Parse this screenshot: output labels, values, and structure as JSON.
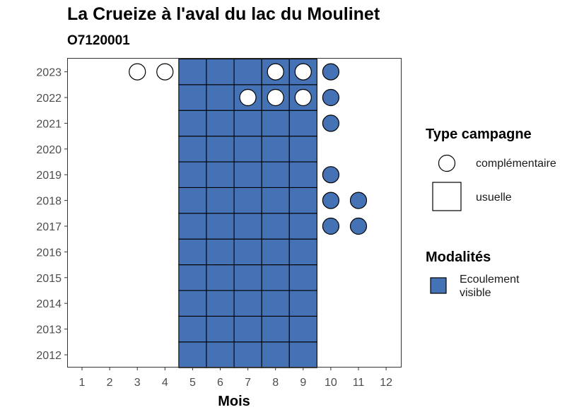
{
  "title": "La Crueize à l'aval du lac du Moulinet",
  "subtitle": "O7120001",
  "chart_data": {
    "type": "heatmap",
    "xlabel": "Mois",
    "ylabel": "",
    "x_ticks": [
      1,
      2,
      3,
      4,
      5,
      6,
      7,
      8,
      9,
      10,
      11,
      12
    ],
    "y_ticks": [
      2012,
      2013,
      2014,
      2015,
      2016,
      2017,
      2018,
      2019,
      2020,
      2021,
      2022,
      2023
    ],
    "xlim": [
      1,
      12
    ],
    "ylim": [
      2012,
      2023
    ],
    "grid": false,
    "legend_position": "right",
    "legends": {
      "shape": {
        "title": "Type campagne",
        "entries": [
          {
            "label": "complémentaire",
            "shape": "circle"
          },
          {
            "label": "usuelle",
            "shape": "square"
          }
        ]
      },
      "fill": {
        "title": "Modalités",
        "entries": [
          {
            "label": "Ecoulement visible",
            "color": "#4472b4"
          }
        ]
      }
    },
    "colors": {
      "Ecoulement visible": "#4472b4",
      "empty": "#ffffff",
      "outline": "#000000"
    },
    "usuelle": {
      "months": [
        5,
        6,
        7,
        8,
        9
      ],
      "years": [
        2012,
        2013,
        2014,
        2015,
        2016,
        2017,
        2018,
        2019,
        2020,
        2021,
        2022,
        2023
      ],
      "modalite": "Ecoulement visible"
    },
    "complementaire": [
      {
        "year": 2023,
        "month": 3,
        "modalite": null
      },
      {
        "year": 2023,
        "month": 4,
        "modalite": null
      },
      {
        "year": 2023,
        "month": 8,
        "modalite": null
      },
      {
        "year": 2023,
        "month": 9,
        "modalite": null
      },
      {
        "year": 2023,
        "month": 10,
        "modalite": "Ecoulement visible"
      },
      {
        "year": 2022,
        "month": 7,
        "modalite": null
      },
      {
        "year": 2022,
        "month": 8,
        "modalite": null
      },
      {
        "year": 2022,
        "month": 9,
        "modalite": null
      },
      {
        "year": 2022,
        "month": 10,
        "modalite": "Ecoulement visible"
      },
      {
        "year": 2021,
        "month": 10,
        "modalite": "Ecoulement visible"
      },
      {
        "year": 2019,
        "month": 10,
        "modalite": "Ecoulement visible"
      },
      {
        "year": 2018,
        "month": 10,
        "modalite": "Ecoulement visible"
      },
      {
        "year": 2018,
        "month": 11,
        "modalite": "Ecoulement visible"
      },
      {
        "year": 2017,
        "month": 10,
        "modalite": "Ecoulement visible"
      },
      {
        "year": 2017,
        "month": 11,
        "modalite": "Ecoulement visible"
      }
    ]
  }
}
